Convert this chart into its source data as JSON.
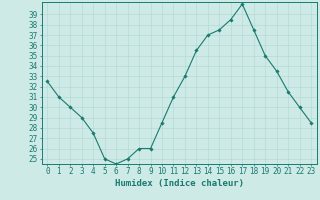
{
  "xlabel": "Humidex (Indice chaleur)",
  "x": [
    0,
    1,
    2,
    3,
    4,
    5,
    6,
    7,
    8,
    9,
    10,
    11,
    12,
    13,
    14,
    15,
    16,
    17,
    18,
    19,
    20,
    21,
    22,
    23
  ],
  "y": [
    32.5,
    31.0,
    30.0,
    29.0,
    27.5,
    25.0,
    24.5,
    25.0,
    26.0,
    26.0,
    28.5,
    31.0,
    33.0,
    35.5,
    37.0,
    37.5,
    38.5,
    40.0,
    37.5,
    35.0,
    33.5,
    31.5,
    30.0,
    28.5
  ],
  "ylim": [
    24.5,
    40.2
  ],
  "yticks": [
    25,
    26,
    27,
    28,
    29,
    30,
    31,
    32,
    33,
    34,
    35,
    36,
    37,
    38,
    39
  ],
  "line_color": "#1a7a6e",
  "marker": "D",
  "marker_size": 1.8,
  "bg_color": "#ceeae7",
  "grid_color": "#b0d8d4",
  "axis_color": "#1a7a6e",
  "tick_color": "#1a7a6e",
  "label_color": "#1a7a6e",
  "font_size": 5.5,
  "xlabel_font_size": 6.5
}
